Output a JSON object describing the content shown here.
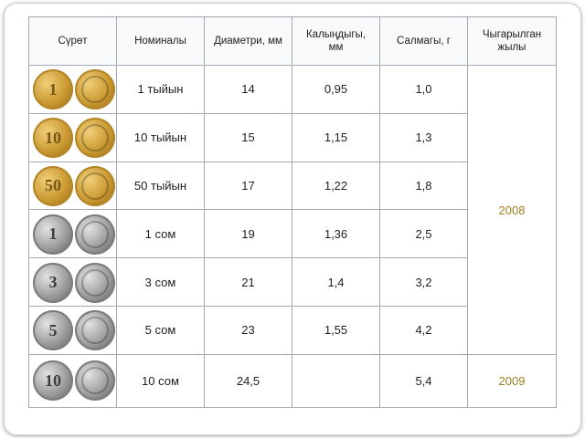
{
  "table": {
    "headers": {
      "image": "Сүрөт",
      "denomination": "Номиналы",
      "diameter": "Диаметри, мм",
      "thickness": [
        "Калыңдыгы,",
        "мм"
      ],
      "weight": "Салмагы, г",
      "year": [
        "Чыгарылган",
        "жылы"
      ]
    },
    "rows": [
      {
        "denomination": "1 тыйын",
        "diameter": "14",
        "thickness": "0,95",
        "weight": "1,0",
        "coin_value": "1",
        "metal": "gold"
      },
      {
        "denomination": "10 тыйын",
        "diameter": "15",
        "thickness": "1,15",
        "weight": "1,3",
        "coin_value": "10",
        "metal": "gold"
      },
      {
        "denomination": "50 тыйын",
        "diameter": "17",
        "thickness": "1,22",
        "weight": "1,8",
        "coin_value": "50",
        "metal": "gold"
      },
      {
        "denomination": "1 сом",
        "diameter": "19",
        "thickness": "1,36",
        "weight": "2,5",
        "coin_value": "1",
        "metal": "silver"
      },
      {
        "denomination": "3 сом",
        "diameter": "21",
        "thickness": "1,4",
        "weight": "3,2",
        "coin_value": "3",
        "metal": "silver"
      },
      {
        "denomination": "5 сом",
        "diameter": "23",
        "thickness": "1,55",
        "weight": "4,2",
        "coin_value": "5",
        "metal": "silver"
      },
      {
        "denomination": "10 сом",
        "diameter": "24,5",
        "thickness": "",
        "weight": "5,4",
        "coin_value": "10",
        "metal": "silver"
      }
    ],
    "years": [
      "2008",
      "2009"
    ],
    "link_color": "#a17e1f",
    "header_bg": "#f8f9fa",
    "border_color": "#a2a9b1"
  }
}
